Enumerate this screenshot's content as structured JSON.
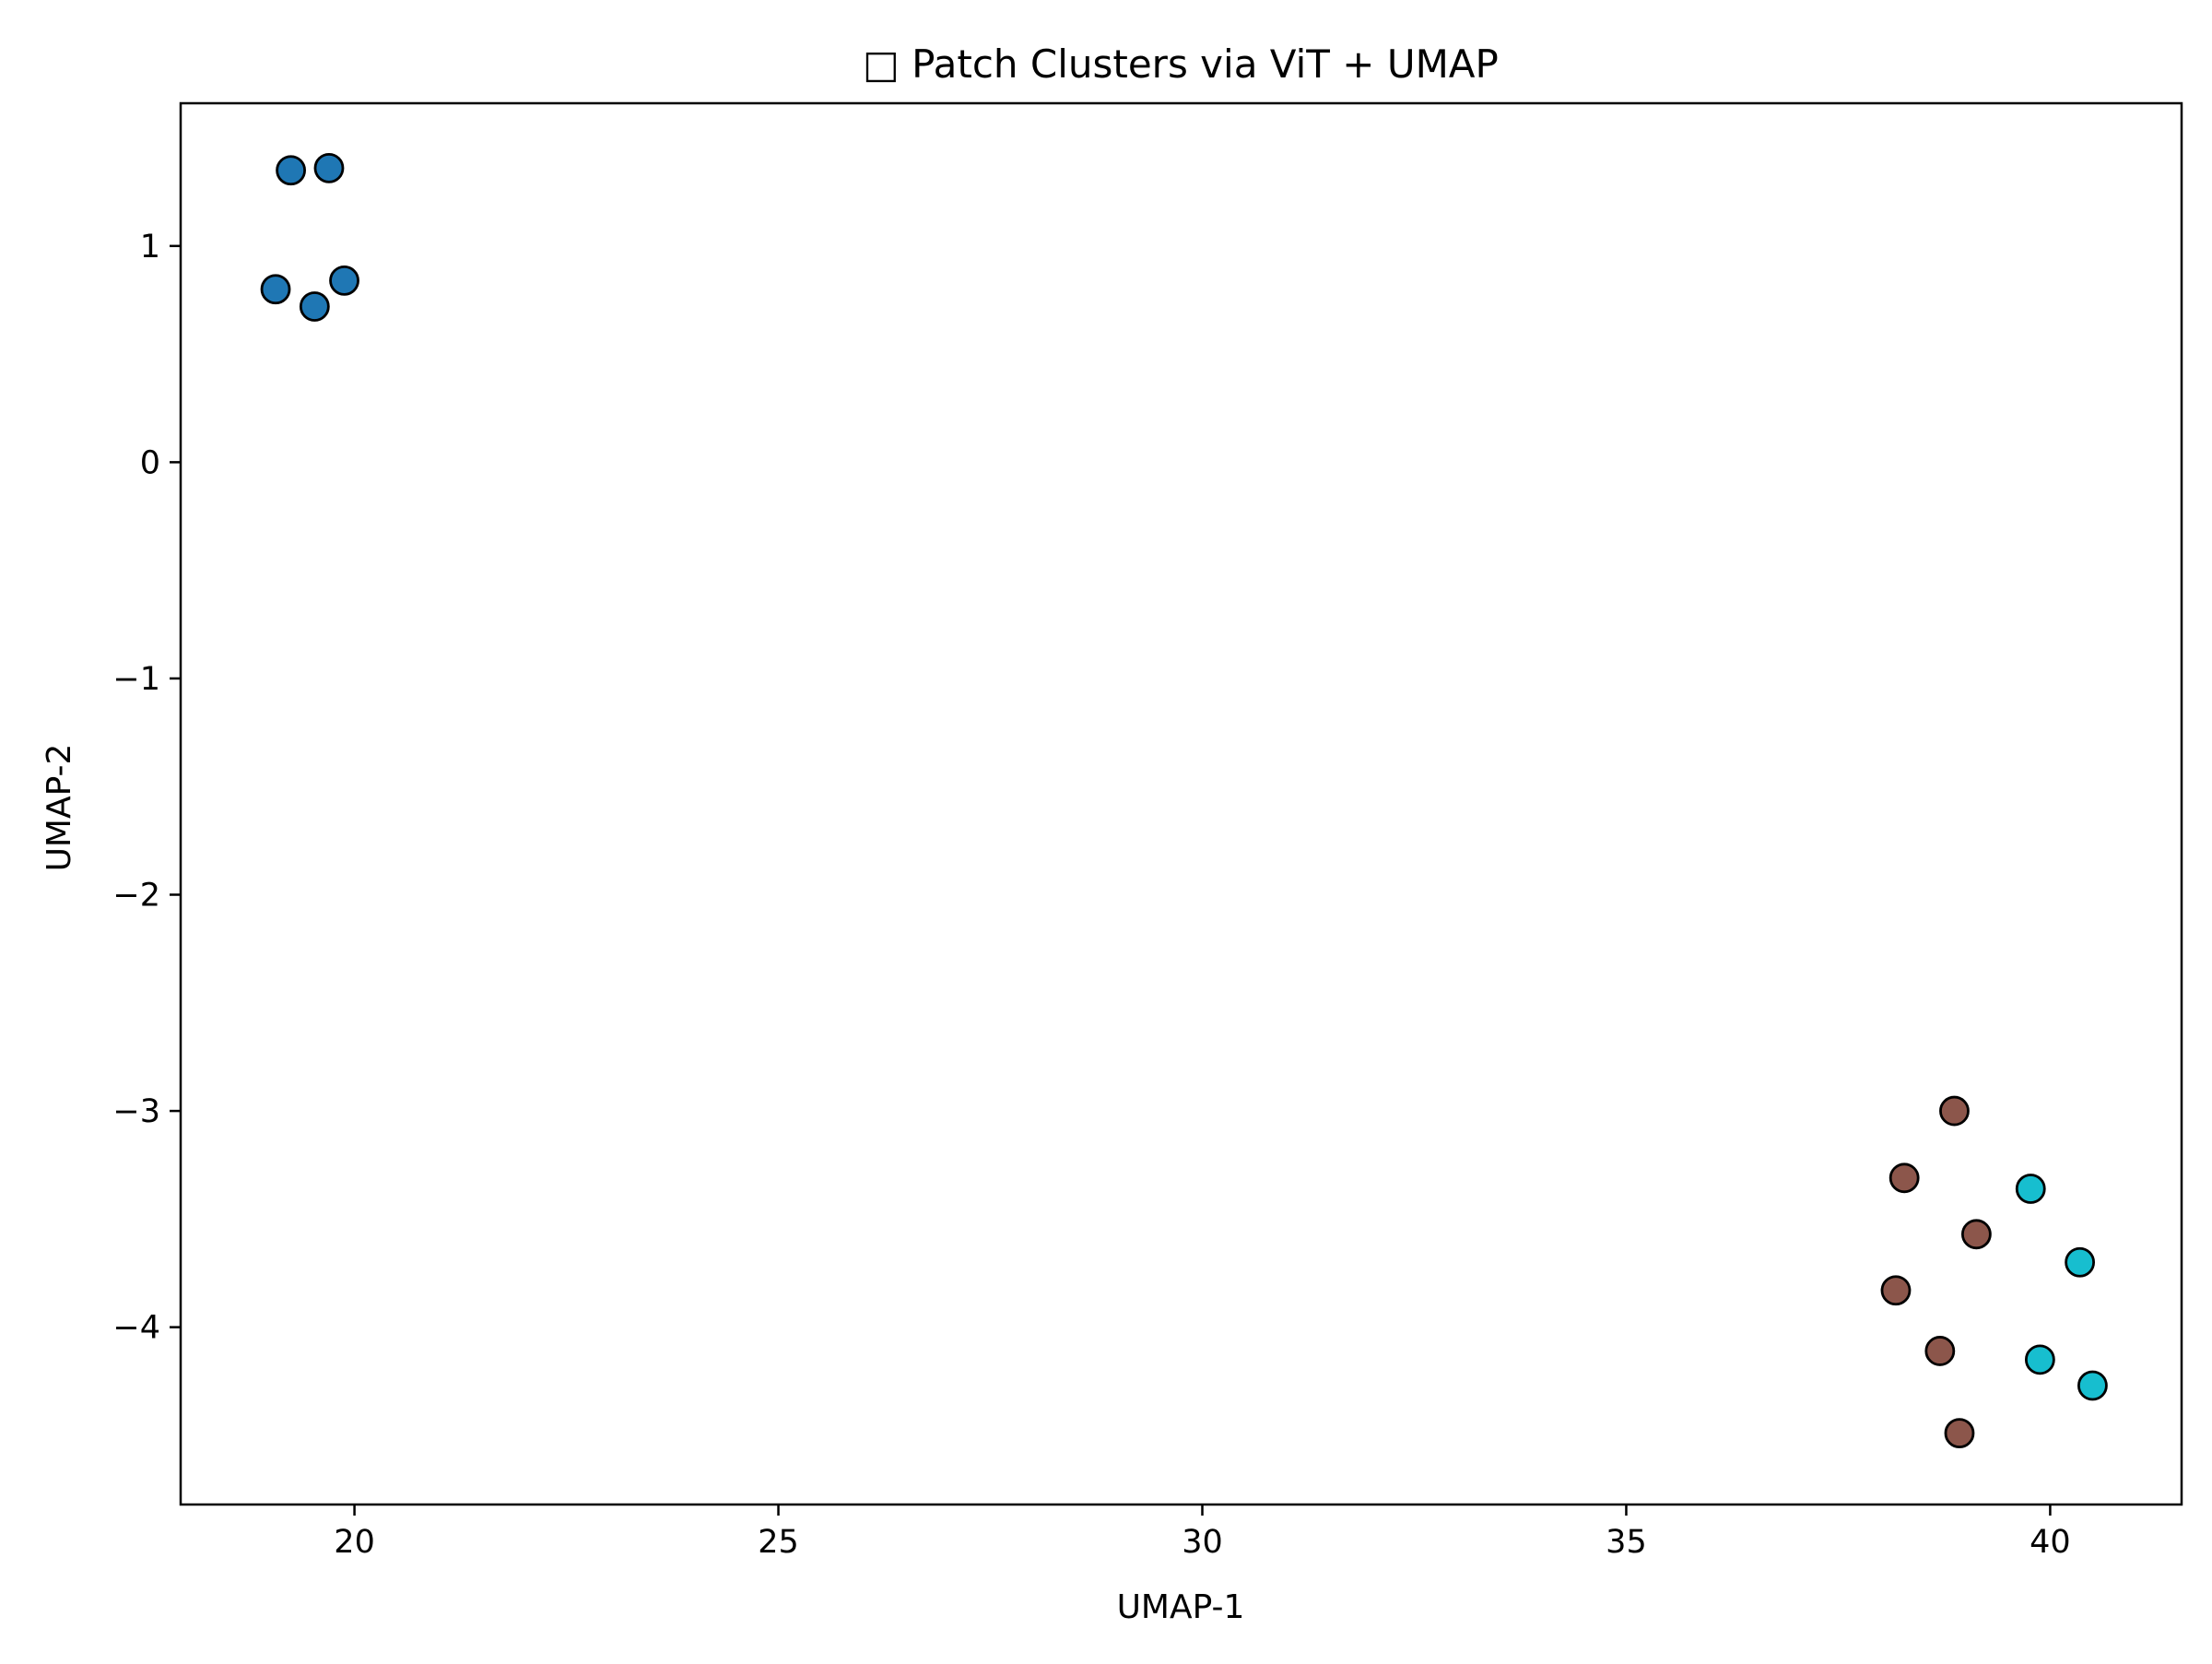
{
  "chart_data": {
    "type": "scatter",
    "title": "□ Patch Clusters via ViT + UMAP",
    "xlabel": "UMAP-1",
    "ylabel": "UMAP-2",
    "xlim": [
      17.95,
      41.55
    ],
    "ylim": [
      -4.82,
      1.66
    ],
    "xticks": [
      20,
      25,
      30,
      35,
      40
    ],
    "yticks": [
      1,
      0,
      -1,
      -2,
      -3,
      -4
    ],
    "xtick_labels": [
      "20",
      "25",
      "30",
      "35",
      "40"
    ],
    "ytick_labels": [
      "1",
      "0",
      "−1",
      "−2",
      "−3",
      "−4"
    ],
    "grid": false,
    "legend": "none",
    "series": [
      {
        "color": "#1f77b4",
        "points": [
          [
            19.25,
            1.35
          ],
          [
            19.7,
            1.36
          ],
          [
            19.07,
            0.8
          ],
          [
            19.53,
            0.72
          ],
          [
            19.88,
            0.84
          ]
        ]
      },
      {
        "color": "#8c564b",
        "points": [
          [
            38.87,
            -3.0
          ],
          [
            38.28,
            -3.31
          ],
          [
            39.13,
            -3.57
          ],
          [
            38.18,
            -3.83
          ],
          [
            38.7,
            -4.11
          ],
          [
            38.93,
            -4.49
          ]
        ]
      },
      {
        "color": "#17becf",
        "points": [
          [
            39.77,
            -3.36
          ],
          [
            40.35,
            -3.7
          ],
          [
            39.88,
            -4.15
          ],
          [
            40.5,
            -4.27
          ]
        ]
      }
    ]
  }
}
